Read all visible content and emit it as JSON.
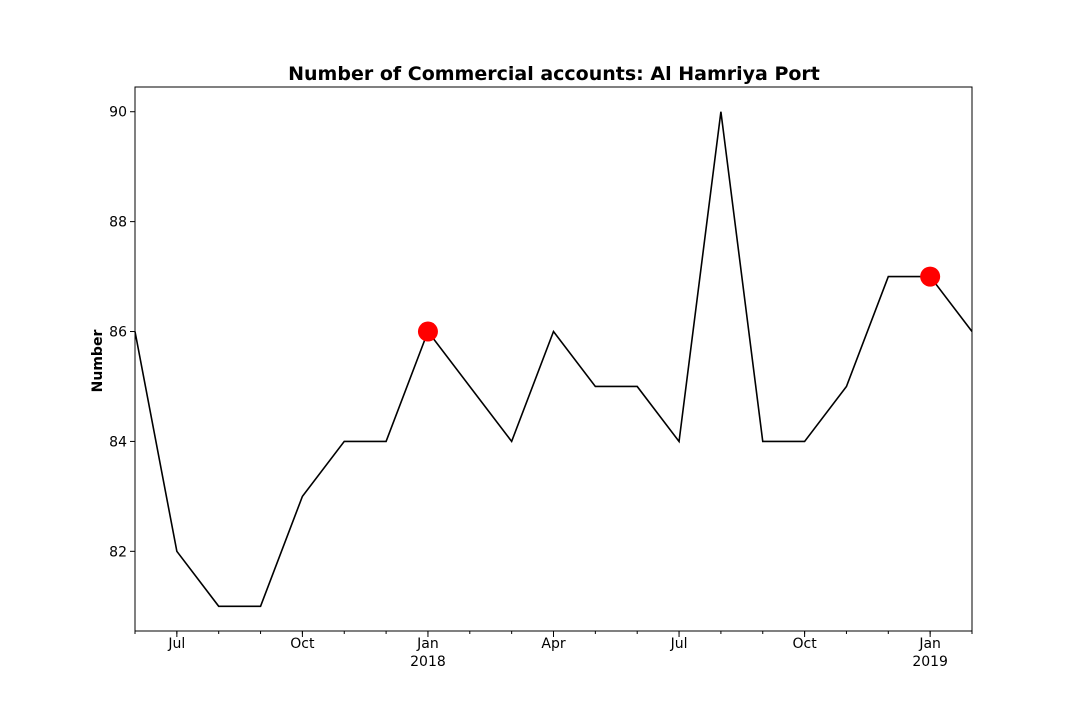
{
  "chart_data": {
    "type": "line",
    "title": "Number of Commercial accounts: Al Hamriya Port",
    "xlabel": "",
    "ylabel": "Number",
    "x": [
      "2017-06",
      "2017-07",
      "2017-08",
      "2017-09",
      "2017-10",
      "2017-11",
      "2017-12",
      "2018-01",
      "2018-02",
      "2018-03",
      "2018-04",
      "2018-05",
      "2018-06",
      "2018-07",
      "2018-08",
      "2018-09",
      "2018-10",
      "2018-11",
      "2018-12",
      "2019-01",
      "2019-02"
    ],
    "series": [
      {
        "values": [
          86,
          82,
          81,
          81,
          83,
          84,
          84,
          86,
          85,
          84,
          86,
          85,
          85,
          84,
          90,
          84,
          84,
          85,
          87,
          87,
          86
        ]
      }
    ],
    "highlighted_points": [
      {
        "x": "2018-01",
        "y": 86
      },
      {
        "x": "2019-01",
        "y": 87
      }
    ],
    "ylim": [
      80.55,
      90.45
    ],
    "yticks": [
      82,
      84,
      86,
      88,
      90
    ],
    "xticks": [
      {
        "x": "2017-07",
        "label": "Jul",
        "sublabel": ""
      },
      {
        "x": "2017-10",
        "label": "Oct",
        "sublabel": ""
      },
      {
        "x": "2018-01",
        "label": "Jan",
        "sublabel": "2018"
      },
      {
        "x": "2018-04",
        "label": "Apr",
        "sublabel": ""
      },
      {
        "x": "2018-07",
        "label": "Jul",
        "sublabel": ""
      },
      {
        "x": "2018-10",
        "label": "Oct",
        "sublabel": ""
      },
      {
        "x": "2019-01",
        "label": "Jan",
        "sublabel": "2019"
      }
    ],
    "line_color": "#000000",
    "highlight_color": "#ff0000",
    "grid": false,
    "legend": "none"
  }
}
